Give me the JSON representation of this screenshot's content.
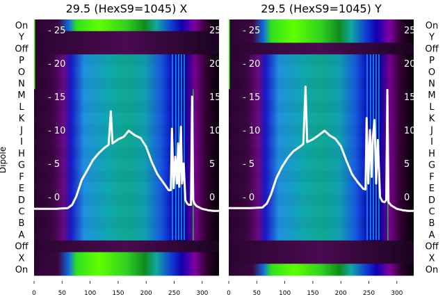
{
  "figure": {
    "ylabel": "Dipole"
  },
  "chart_data": [
    {
      "type": "heatmap",
      "title": "29.5 (HexS9=1045) X",
      "row_labels": [
        "On",
        "Y",
        "Off",
        "P",
        "O",
        "N",
        "M",
        "L",
        "K",
        "J",
        "I",
        "H",
        "G",
        "F",
        "E",
        "D",
        "C",
        "B",
        "A",
        "Off",
        "X",
        "On"
      ],
      "xlim": [
        0,
        330
      ],
      "xticks": [
        0,
        50,
        100,
        150,
        200,
        250,
        300
      ],
      "overlay_ylim": [
        -3.5,
        26.8
      ],
      "overlay_yticks": [
        0,
        5,
        10,
        15,
        20,
        25
      ],
      "bright_rows": [
        "On",
        "X",
        "On"
      ],
      "series": [
        {
          "name": "profile",
          "x": [
            0,
            20,
            40,
            60,
            68,
            75,
            85,
            95,
            105,
            115,
            125,
            133,
            137,
            140,
            150,
            160,
            169,
            180,
            190,
            200,
            210,
            220,
            230,
            240,
            244,
            246,
            249,
            252,
            255,
            257,
            259,
            262,
            264,
            267,
            270,
            273,
            276,
            280,
            282,
            284,
            286,
            290,
            300,
            310,
            320,
            330
          ],
          "y": [
            -1.8,
            -1.8,
            -1.8,
            -1.7,
            -1.2,
            0,
            2.5,
            4,
            5.5,
            6.5,
            7.3,
            7.8,
            12.8,
            8,
            8.6,
            9,
            9.9,
            9.2,
            8.8,
            7.5,
            5.2,
            3.4,
            2.2,
            1,
            1,
            10.2,
            1.3,
            6,
            2,
            8,
            1.5,
            10.5,
            2,
            5,
            -0.5,
            -1,
            -1.2,
            -1.2,
            15,
            -0.5,
            -1,
            -1.4,
            -1.8,
            -2,
            -2.1,
            -2.1
          ]
        }
      ]
    },
    {
      "type": "heatmap",
      "title": "29.5 (HexS9=1045) Y",
      "row_labels": [
        "On",
        "Y",
        "Off",
        "P",
        "O",
        "N",
        "M",
        "L",
        "K",
        "J",
        "I",
        "H",
        "G",
        "F",
        "E",
        "D",
        "C",
        "B",
        "A",
        "Off",
        "X",
        "On"
      ],
      "xlim": [
        0,
        330
      ],
      "xticks": [
        0,
        50,
        100,
        150,
        200,
        250,
        300
      ],
      "overlay_ylim": [
        -3.5,
        26.8
      ],
      "overlay_yticks": [
        0,
        5,
        10,
        15,
        20,
        25
      ],
      "bright_rows": [
        "On",
        "Y",
        "On"
      ],
      "series": [
        {
          "name": "profile",
          "x": [
            0,
            20,
            40,
            60,
            68,
            75,
            85,
            95,
            105,
            115,
            125,
            133,
            137,
            140,
            150,
            160,
            171,
            180,
            190,
            200,
            210,
            220,
            230,
            240,
            244,
            246,
            249,
            252,
            255,
            257,
            260,
            263,
            266,
            270,
            274,
            278,
            281,
            283,
            285,
            290,
            300,
            310,
            320,
            330
          ],
          "y": [
            -1.7,
            -1.7,
            -1.7,
            -1.6,
            -1,
            0.3,
            2.8,
            4.5,
            5.8,
            6.8,
            7.4,
            7.9,
            16.5,
            8.2,
            8.6,
            9.2,
            9.9,
            9.2,
            8.7,
            7.6,
            5.4,
            3.4,
            2.2,
            1.2,
            1.1,
            11.8,
            2,
            10,
            3,
            9,
            11.5,
            2,
            8.5,
            0,
            -0.7,
            -0.8,
            -0.5,
            16,
            -0.8,
            -1.3,
            -1.8,
            -2,
            -2.1,
            -2.1
          ]
        }
      ]
    }
  ]
}
